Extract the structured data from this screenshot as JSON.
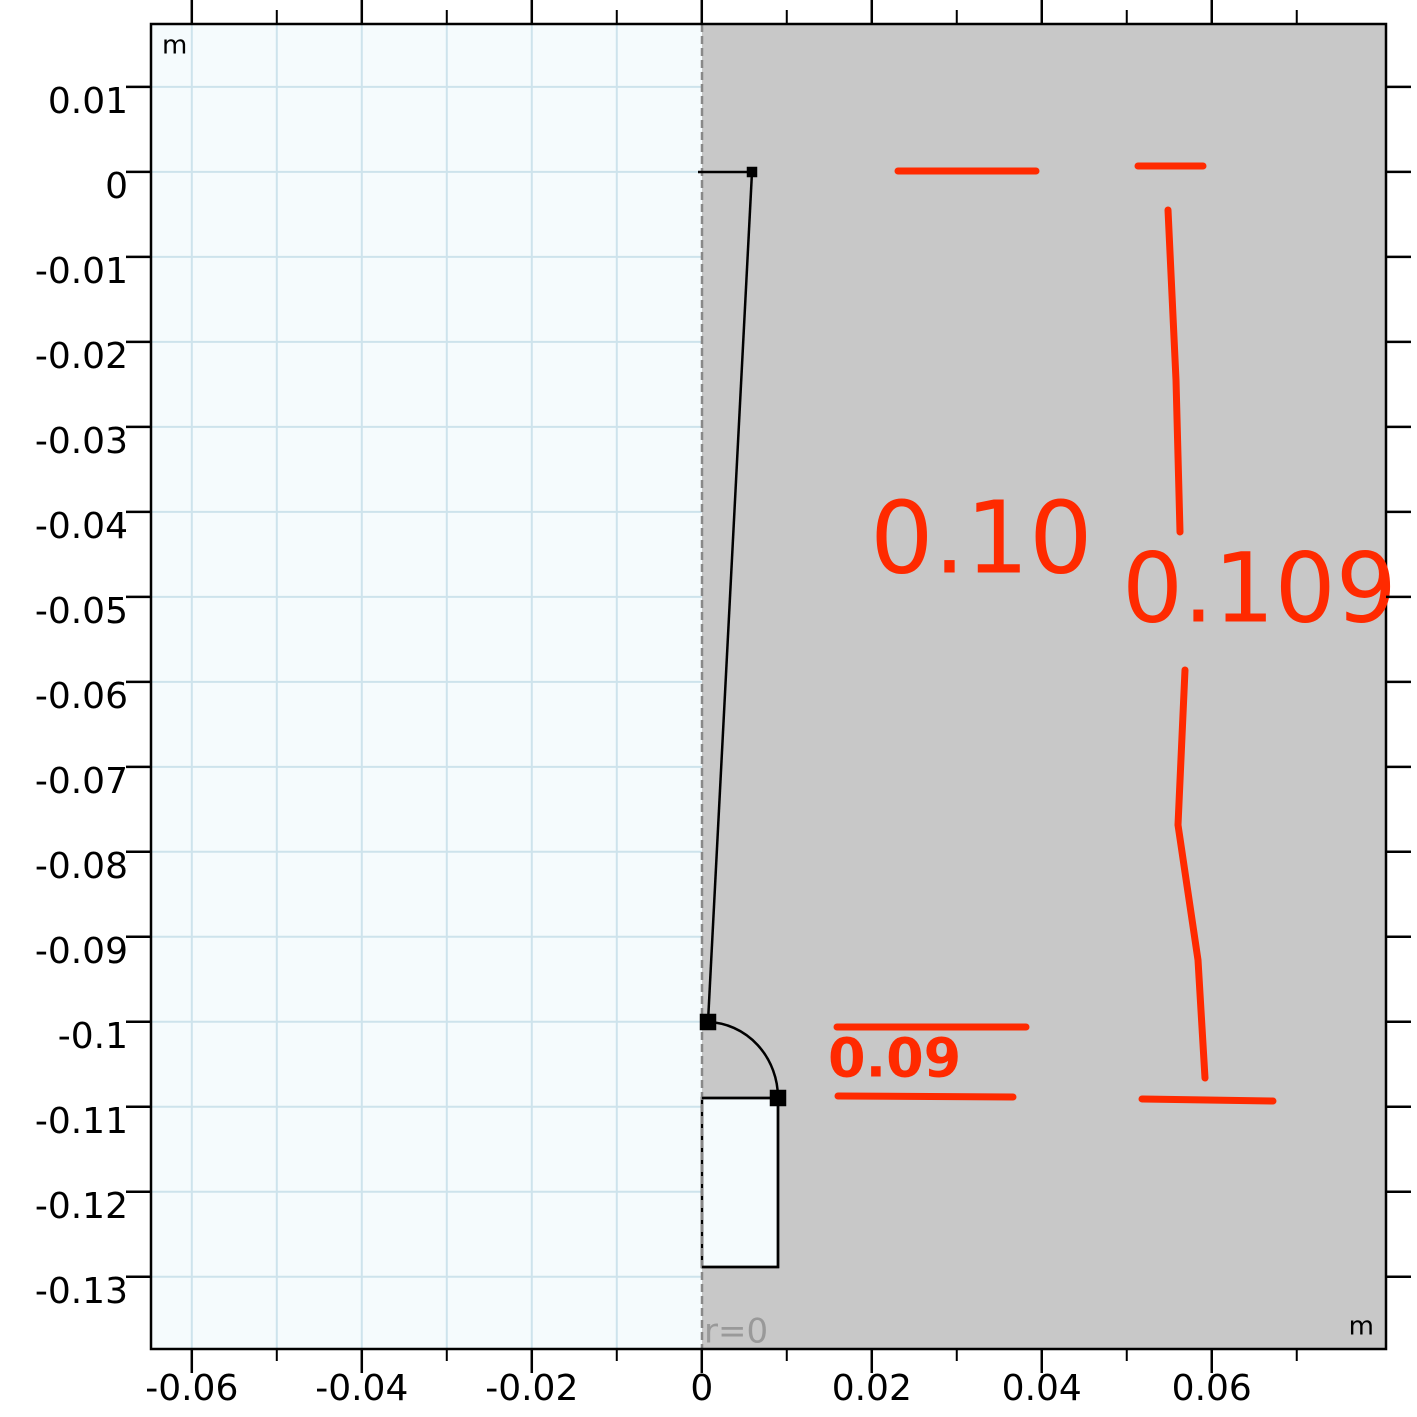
{
  "chart_data": {
    "type": "geometry",
    "xlim": [
      -0.0648,
      0.0805
    ],
    "ylim": [
      -0.1385,
      0.0174
    ],
    "xticks": [
      -0.06,
      -0.04,
      -0.02,
      0,
      0.02,
      0.04,
      0.06
    ],
    "xminor_ticks": [
      -0.05,
      -0.03,
      -0.01,
      0.01,
      0.03,
      0.05,
      0.07
    ],
    "yticks": [
      0.01,
      0,
      -0.01,
      -0.02,
      -0.03,
      -0.04,
      -0.05,
      -0.06,
      -0.07,
      -0.08,
      -0.09,
      -0.1,
      -0.11,
      -0.12,
      -0.13
    ],
    "grid": true,
    "x_unit": "m",
    "y_unit": "m",
    "axis_label": "r=0",
    "annotations": [
      "0.10",
      "0.109",
      "0.09"
    ],
    "annotation_color": "#ff2a00"
  }
}
